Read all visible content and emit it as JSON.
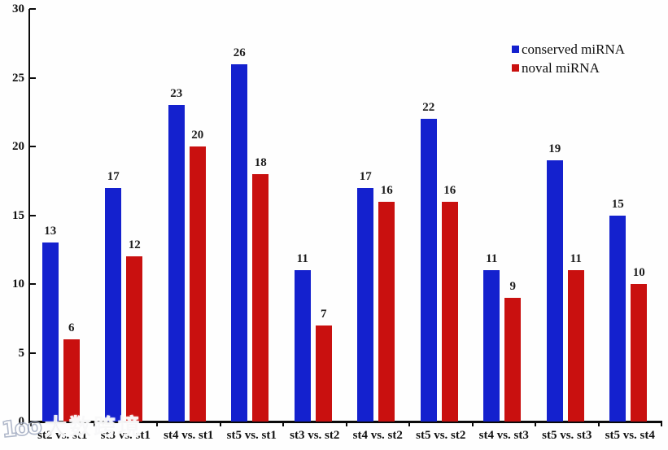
{
  "watermark": {
    "logo_icon": "100-smiley-logo",
    "logo_glyphs": "1oo",
    "text": "大数跨境"
  },
  "chart_data": {
    "type": "bar",
    "title": "",
    "xlabel": "",
    "ylabel": "",
    "categories": [
      "st2 vs. st1",
      "st3 vs. st1",
      "st4 vs. st1",
      "st5 vs. st1",
      "st3 vs. st2",
      "st4 vs. st2",
      "st5 vs. st2",
      "st4 vs. st3",
      "st5 vs. st3",
      "st5 vs. st4"
    ],
    "series": [
      {
        "name": "conserved miRNA",
        "color": "#1421CE",
        "values": [
          13,
          17,
          23,
          26,
          11,
          17,
          22,
          11,
          19,
          15
        ]
      },
      {
        "name": "noval miRNA",
        "color": "#C9100F",
        "values": [
          6,
          12,
          20,
          18,
          7,
          16,
          16,
          9,
          11,
          10
        ]
      }
    ],
    "ylim": [
      0,
      30
    ],
    "yticks": [
      0,
      5,
      10,
      15,
      20,
      25,
      30
    ],
    "grid": false,
    "value_labels": true,
    "legend_position": "top-right",
    "axis_color": "#0a0a0a",
    "background": "#fefefe"
  }
}
